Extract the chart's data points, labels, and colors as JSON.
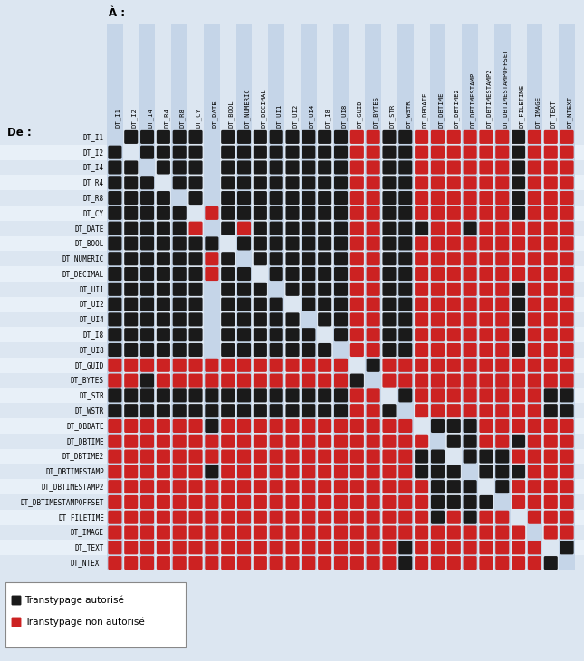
{
  "title_top": "À :",
  "title_left": "De :",
  "background_color": "#dce6f1",
  "row_labels": [
    "DT_I1",
    "DT_I2",
    "DT_I4",
    "DT_R4",
    "DT_R8",
    "DT_CY",
    "DT_DATE",
    "DT_BOOL",
    "DT_NUMERIC",
    "DT_DECIMAL",
    "DT_UI1",
    "DT_UI2",
    "DT_UI4",
    "DT_I8",
    "DT_UI8",
    "DT_GUID",
    "DT_BYTES",
    "DT_STR",
    "DT_WSTR",
    "DT_DBDATE",
    "DT_DBTIME",
    "DT_DBTIME2",
    "DT_DBTIMESTAMP",
    "DT_DBTIMESTAMP2",
    "DT_DBTIMESTAMPOFFSET",
    "DT_FILETIME",
    "DT_IMAGE",
    "DT_TEXT",
    "DT_NTEXT"
  ],
  "col_labels": [
    "DT_I1",
    "DT_I2",
    "DT_I4",
    "DT_R4",
    "DT_R8",
    "DT_CY",
    "DT_DATE",
    "DT_BOOL",
    "DT_NUMERIC",
    "DT_DECIMAL",
    "DT_UI1",
    "DT_UI2",
    "DT_UI4",
    "DT_I8",
    "DT_UI8",
    "DT_GUID",
    "DT_BYTES",
    "DT_STR",
    "DT_WSTR",
    "DT_DBDATE",
    "DT_DBTIME",
    "DT_DBTIME2",
    "DT_DBTIMESTAMP",
    "DT_DBTIMESTAMP2",
    "DT_DBTIMESTAMPOFFSET",
    "DT_FILETIME",
    "DT_IMAGE",
    "DT_TEXT",
    "DT_NTEXT"
  ],
  "legend_black": "Transtypage autorisé",
  "legend_red": "Transtypage non autorisé",
  "black_color": "#1a1a1a",
  "red_color": "#cc2222",
  "col_bg_dark": "#c5d5e8",
  "col_bg_light": "#dce6f1",
  "row_bg_even": "#dce6f1",
  "row_bg_odd": "#e8f0f8",
  "matrix": [
    [
      0,
      1,
      1,
      1,
      1,
      1,
      0,
      1,
      1,
      1,
      1,
      1,
      1,
      1,
      1,
      2,
      2,
      1,
      1,
      2,
      2,
      2,
      2,
      2,
      2,
      1,
      2,
      2,
      2
    ],
    [
      1,
      0,
      1,
      1,
      1,
      1,
      0,
      1,
      1,
      1,
      1,
      1,
      1,
      1,
      1,
      2,
      2,
      1,
      1,
      2,
      2,
      2,
      2,
      2,
      2,
      1,
      2,
      2,
      2
    ],
    [
      1,
      1,
      0,
      1,
      1,
      1,
      0,
      1,
      1,
      1,
      1,
      1,
      1,
      1,
      1,
      2,
      2,
      1,
      1,
      2,
      2,
      2,
      2,
      2,
      2,
      1,
      2,
      2,
      2
    ],
    [
      1,
      1,
      1,
      0,
      1,
      1,
      0,
      1,
      1,
      1,
      1,
      1,
      1,
      1,
      1,
      2,
      2,
      1,
      1,
      2,
      2,
      2,
      2,
      2,
      2,
      1,
      2,
      2,
      2
    ],
    [
      1,
      1,
      1,
      1,
      0,
      1,
      0,
      1,
      1,
      1,
      1,
      1,
      1,
      1,
      1,
      2,
      2,
      1,
      1,
      2,
      2,
      2,
      2,
      2,
      2,
      1,
      2,
      2,
      2
    ],
    [
      1,
      1,
      1,
      1,
      1,
      0,
      2,
      1,
      1,
      1,
      1,
      1,
      1,
      1,
      1,
      2,
      2,
      1,
      1,
      2,
      2,
      2,
      2,
      2,
      2,
      1,
      2,
      2,
      2
    ],
    [
      1,
      1,
      1,
      1,
      1,
      2,
      0,
      1,
      2,
      1,
      1,
      1,
      1,
      1,
      1,
      2,
      2,
      1,
      1,
      1,
      2,
      2,
      1,
      2,
      2,
      2,
      2,
      2,
      2
    ],
    [
      1,
      1,
      1,
      1,
      1,
      1,
      1,
      0,
      1,
      1,
      1,
      1,
      1,
      1,
      1,
      2,
      2,
      1,
      1,
      2,
      2,
      2,
      2,
      2,
      2,
      2,
      2,
      2,
      2
    ],
    [
      1,
      1,
      1,
      1,
      1,
      1,
      2,
      1,
      0,
      1,
      1,
      1,
      1,
      1,
      1,
      2,
      2,
      1,
      1,
      2,
      2,
      2,
      2,
      2,
      2,
      2,
      2,
      2,
      2
    ],
    [
      1,
      1,
      1,
      1,
      1,
      1,
      2,
      1,
      1,
      0,
      1,
      1,
      1,
      1,
      1,
      2,
      2,
      1,
      1,
      2,
      2,
      2,
      2,
      2,
      2,
      2,
      2,
      2,
      2
    ],
    [
      1,
      1,
      1,
      1,
      1,
      1,
      0,
      1,
      1,
      1,
      0,
      1,
      1,
      1,
      1,
      2,
      2,
      1,
      1,
      2,
      2,
      2,
      2,
      2,
      2,
      1,
      2,
      2,
      2
    ],
    [
      1,
      1,
      1,
      1,
      1,
      1,
      0,
      1,
      1,
      1,
      1,
      0,
      1,
      1,
      1,
      2,
      2,
      1,
      1,
      2,
      2,
      2,
      2,
      2,
      2,
      1,
      2,
      2,
      2
    ],
    [
      1,
      1,
      1,
      1,
      1,
      1,
      0,
      1,
      1,
      1,
      1,
      1,
      0,
      1,
      1,
      2,
      2,
      1,
      1,
      2,
      2,
      2,
      2,
      2,
      2,
      1,
      2,
      2,
      2
    ],
    [
      1,
      1,
      1,
      1,
      1,
      1,
      0,
      1,
      1,
      1,
      1,
      1,
      1,
      0,
      1,
      2,
      2,
      1,
      1,
      2,
      2,
      2,
      2,
      2,
      2,
      1,
      2,
      2,
      2
    ],
    [
      1,
      1,
      1,
      1,
      1,
      1,
      0,
      1,
      1,
      1,
      1,
      1,
      1,
      1,
      0,
      2,
      2,
      1,
      1,
      2,
      2,
      2,
      2,
      2,
      2,
      1,
      2,
      2,
      2
    ],
    [
      2,
      2,
      2,
      2,
      2,
      2,
      2,
      2,
      2,
      2,
      2,
      2,
      2,
      2,
      2,
      0,
      1,
      2,
      2,
      2,
      2,
      2,
      2,
      2,
      2,
      2,
      2,
      2,
      2
    ],
    [
      2,
      2,
      1,
      2,
      2,
      2,
      2,
      2,
      2,
      2,
      2,
      2,
      2,
      2,
      2,
      1,
      0,
      2,
      2,
      2,
      2,
      2,
      2,
      2,
      2,
      2,
      2,
      2,
      2
    ],
    [
      1,
      1,
      1,
      1,
      1,
      1,
      1,
      1,
      1,
      1,
      1,
      1,
      1,
      1,
      1,
      2,
      2,
      0,
      1,
      2,
      2,
      2,
      2,
      2,
      2,
      2,
      2,
      1,
      1
    ],
    [
      1,
      1,
      1,
      1,
      1,
      1,
      1,
      1,
      1,
      1,
      1,
      1,
      1,
      1,
      1,
      2,
      2,
      1,
      0,
      2,
      2,
      2,
      2,
      2,
      2,
      2,
      2,
      1,
      1
    ],
    [
      2,
      2,
      2,
      2,
      2,
      2,
      1,
      2,
      2,
      2,
      2,
      2,
      2,
      2,
      2,
      2,
      2,
      2,
      2,
      0,
      1,
      1,
      1,
      2,
      2,
      2,
      2,
      2,
      2
    ],
    [
      2,
      2,
      2,
      2,
      2,
      2,
      2,
      2,
      2,
      2,
      2,
      2,
      2,
      2,
      2,
      2,
      2,
      2,
      2,
      2,
      0,
      1,
      1,
      2,
      2,
      1,
      2,
      2,
      2
    ],
    [
      2,
      2,
      2,
      2,
      2,
      2,
      2,
      2,
      2,
      2,
      2,
      2,
      2,
      2,
      2,
      2,
      2,
      2,
      2,
      1,
      1,
      0,
      1,
      1,
      1,
      2,
      2,
      2,
      2
    ],
    [
      2,
      2,
      2,
      2,
      2,
      2,
      1,
      2,
      2,
      2,
      2,
      2,
      2,
      2,
      2,
      2,
      2,
      2,
      2,
      1,
      1,
      1,
      0,
      1,
      1,
      1,
      2,
      2,
      2
    ],
    [
      2,
      2,
      2,
      2,
      2,
      2,
      2,
      2,
      2,
      2,
      2,
      2,
      2,
      2,
      2,
      2,
      2,
      2,
      2,
      2,
      1,
      1,
      1,
      0,
      1,
      2,
      2,
      2,
      2
    ],
    [
      2,
      2,
      2,
      2,
      2,
      2,
      2,
      2,
      2,
      2,
      2,
      2,
      2,
      2,
      2,
      2,
      2,
      2,
      2,
      2,
      1,
      1,
      1,
      1,
      0,
      2,
      2,
      2,
      2
    ],
    [
      2,
      2,
      2,
      2,
      2,
      2,
      2,
      2,
      2,
      2,
      2,
      2,
      2,
      2,
      2,
      2,
      2,
      2,
      2,
      2,
      1,
      2,
      1,
      2,
      2,
      0,
      2,
      2,
      2
    ],
    [
      2,
      2,
      2,
      2,
      2,
      2,
      2,
      2,
      2,
      2,
      2,
      2,
      2,
      2,
      2,
      2,
      2,
      2,
      2,
      2,
      2,
      2,
      2,
      2,
      2,
      2,
      0,
      2,
      2
    ],
    [
      2,
      2,
      2,
      2,
      2,
      2,
      2,
      2,
      2,
      2,
      2,
      2,
      2,
      2,
      2,
      2,
      2,
      2,
      1,
      2,
      2,
      2,
      2,
      2,
      2,
      2,
      2,
      0,
      1
    ],
    [
      2,
      2,
      2,
      2,
      2,
      2,
      2,
      2,
      2,
      2,
      2,
      2,
      2,
      2,
      2,
      2,
      2,
      2,
      1,
      2,
      2,
      2,
      2,
      2,
      2,
      2,
      2,
      1,
      0
    ]
  ]
}
